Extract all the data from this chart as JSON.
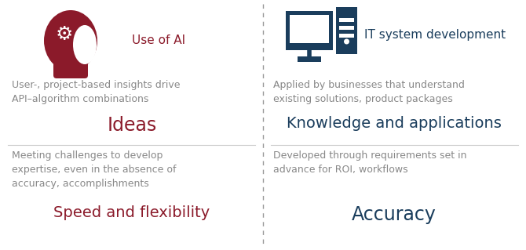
{
  "background_color": "#ffffff",
  "divider_color": "#999999",
  "ai_color": "#8b1a2a",
  "it_color": "#1a3d5c",
  "body_text_color": "#888888",
  "left_heading": "Use of AI",
  "right_heading": "IT system development",
  "left_desc1": "User-, project-based insights drive\nAPI–algorithm combinations",
  "left_label1": "Ideas",
  "left_desc2": "Meeting challenges to develop\nexpertise, even in the absence of\naccuracy, accomplishments",
  "left_label2": "Speed and flexibility",
  "right_desc1": "Applied by businesses that understand\nexisting solutions, product packages",
  "right_label1": "Knowledge and applications",
  "right_desc2": "Developed through requirements set in\nadvance for ROI, workflows",
  "right_label2": "Accuracy",
  "heading_fontsize": 11,
  "label_fontsize_large": 17,
  "label_fontsize_small": 14,
  "desc_fontsize": 9
}
